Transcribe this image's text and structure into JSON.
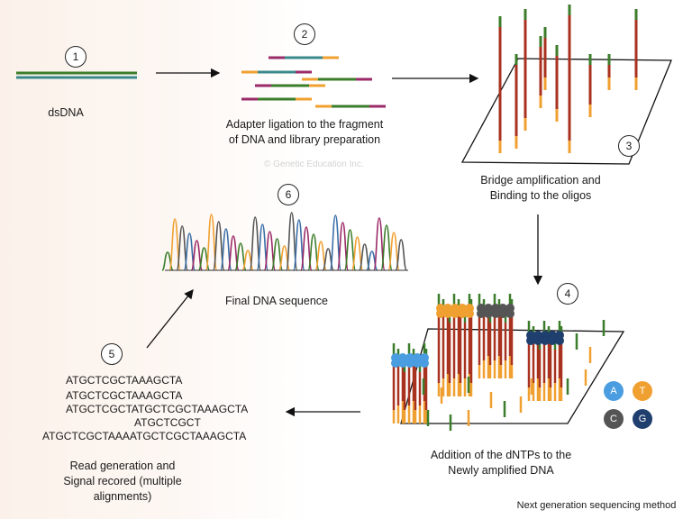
{
  "steps": [
    {
      "number": "1",
      "caption": [
        "dsDNA"
      ]
    },
    {
      "number": "2",
      "caption": [
        "Adapter ligation to the fragment",
        "of DNA and library preparation"
      ]
    },
    {
      "number": "3",
      "caption": [
        "Bridge amplification and",
        "Binding to the oligos"
      ]
    },
    {
      "number": "4",
      "caption": [
        "Addition of the dNTPs to the",
        "Newly amplified DNA"
      ]
    },
    {
      "number": "5",
      "caption": [
        "Read generation and",
        "Signal recored (multiple",
        "alignments)"
      ]
    },
    {
      "number": "6",
      "caption": [
        "Final DNA sequence"
      ]
    }
  ],
  "reads": [
    "ATGCTCGCTAAAGCTA",
    "ATGCTCGCTAAAGCTA",
    "ATGCTCGCTATGCTCGCTAAAGCTA",
    "ATGCTCGCT",
    "ATGCTCGCTAAAATGCTCGCTAAAGCTA"
  ],
  "legend": [
    {
      "label": "A",
      "color": "#4a9de0"
    },
    {
      "label": "T",
      "color": "#f0a030"
    },
    {
      "label": "C",
      "color": "#555555"
    },
    {
      "label": "G",
      "color": "#1f3f6e"
    }
  ],
  "watermark": "© Genetic Education Inc.",
  "footer": "Next generation sequencing method",
  "colors": {
    "green": "#3b7d2a",
    "teal": "#3a8a8c",
    "magenta": "#9b2a68",
    "orange": "#f0a030",
    "red": "#a8321f"
  }
}
